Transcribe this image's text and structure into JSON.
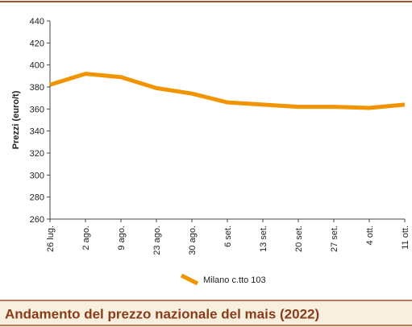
{
  "chart_data": {
    "type": "line",
    "title": "Andamento del prezzo nazionale del mais (2022)",
    "y_label": "Prezzi (euro/t)",
    "categories": [
      "26 lug.",
      "2 ago.",
      "9 ago.",
      "23 ago.",
      "30 ago.",
      "6 set.",
      "13 set.",
      "20 set.",
      "27 set.",
      "4 ott.",
      "11 ott."
    ],
    "series": [
      {
        "name": "Milano  c.tto 103",
        "color": "#f29400",
        "values": [
          382,
          392,
          389,
          379,
          374,
          366,
          364,
          362,
          362,
          361,
          364
        ]
      }
    ],
    "ylim": [
      260,
      440
    ],
    "yticks": [
      260,
      280,
      300,
      320,
      340,
      360,
      380,
      400,
      420,
      440
    ]
  }
}
